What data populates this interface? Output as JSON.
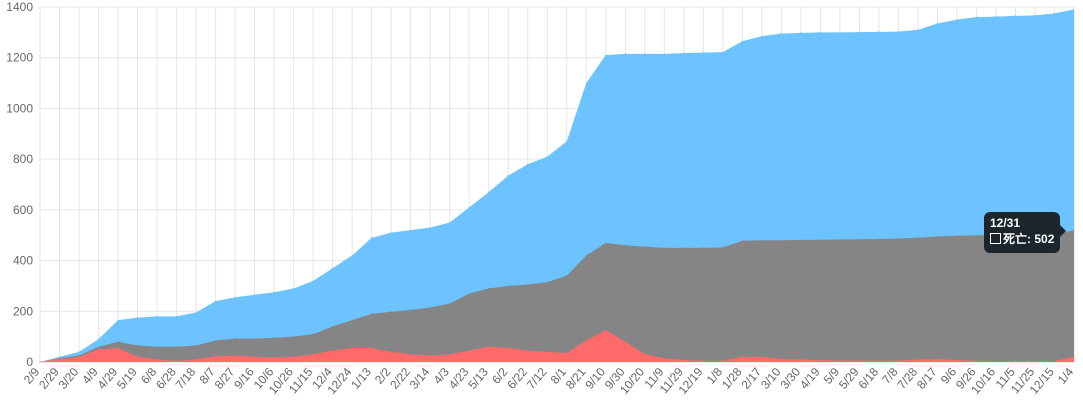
{
  "chart_data": {
    "type": "area",
    "ylim": [
      0,
      1400
    ],
    "yticks": [
      0,
      200,
      400,
      600,
      800,
      1000,
      1200,
      1400
    ],
    "grid": true,
    "stacked": false,
    "categories": [
      "2/9",
      "2/29",
      "3/20",
      "4/9",
      "4/29",
      "5/19",
      "6/8",
      "6/28",
      "7/18",
      "8/7",
      "8/27",
      "9/16",
      "10/6",
      "10/26",
      "11/15",
      "12/4",
      "12/24",
      "1/13",
      "2/2",
      "2/22",
      "3/14",
      "4/3",
      "4/23",
      "5/13",
      "6/2",
      "6/22",
      "7/12",
      "8/1",
      "8/21",
      "9/10",
      "9/30",
      "10/20",
      "11/9",
      "11/29",
      "12/19",
      "1/8",
      "1/28",
      "2/17",
      "3/10",
      "3/30",
      "4/19",
      "5/9",
      "5/29",
      "6/18",
      "7/8",
      "7/28",
      "8/17",
      "9/6",
      "9/26",
      "10/16",
      "11/5",
      "11/25",
      "12/15",
      "1/4"
    ],
    "series": [
      {
        "color": "#6cc3ff",
        "values": [
          0,
          20,
          40,
          90,
          165,
          175,
          180,
          180,
          195,
          240,
          255,
          265,
          275,
          290,
          320,
          370,
          420,
          490,
          510,
          520,
          530,
          550,
          610,
          670,
          735,
          780,
          810,
          870,
          1100,
          1210,
          1215,
          1215,
          1215,
          1218,
          1220,
          1222,
          1265,
          1285,
          1295,
          1298,
          1300,
          1300,
          1301,
          1302,
          1303,
          1310,
          1335,
          1350,
          1360,
          1362,
          1365,
          1367,
          1375,
          1390
        ]
      },
      {
        "color": "#858585",
        "values": [
          0,
          15,
          25,
          60,
          80,
          65,
          60,
          60,
          65,
          85,
          92,
          92,
          95,
          100,
          110,
          140,
          165,
          190,
          198,
          205,
          215,
          230,
          270,
          290,
          300,
          305,
          315,
          340,
          420,
          470,
          460,
          455,
          450,
          450,
          450,
          452,
          478,
          480,
          480,
          481,
          482,
          483,
          484,
          485,
          487,
          490,
          495,
          498,
          500,
          500,
          501,
          501,
          502,
          520
        ]
      },
      {
        "color": "#ff6b6b",
        "values": [
          0,
          12,
          20,
          50,
          55,
          20,
          10,
          5,
          10,
          22,
          25,
          20,
          18,
          20,
          30,
          45,
          55,
          55,
          40,
          30,
          25,
          30,
          45,
          60,
          55,
          45,
          40,
          35,
          85,
          125,
          80,
          30,
          15,
          8,
          5,
          5,
          20,
          20,
          12,
          10,
          8,
          6,
          6,
          5,
          6,
          10,
          12,
          8,
          5,
          4,
          3,
          3,
          4,
          20
        ]
      }
    ],
    "tooltip": {
      "title": "12/31",
      "series_name": "死亡",
      "value": "502"
    }
  }
}
